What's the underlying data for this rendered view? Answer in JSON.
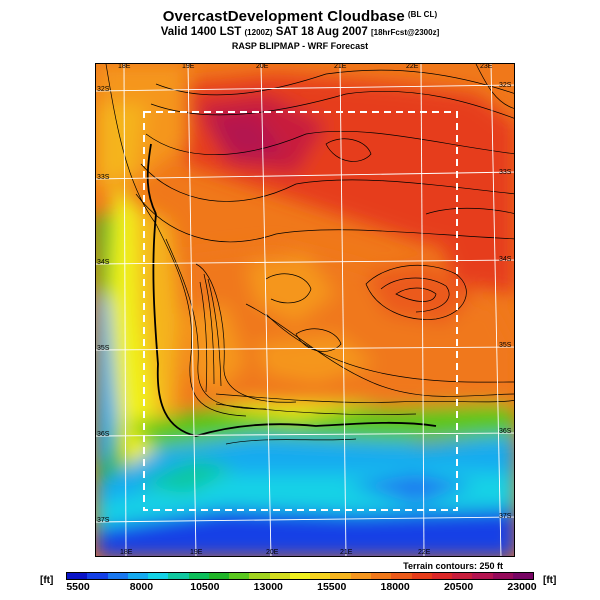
{
  "title": {
    "main": "OvercastDevelopment Cloudbase",
    "main_suffix": "(BL CL)",
    "valid_prefix": "Valid 1400 LST",
    "valid_z": "(1200Z)",
    "valid_date": "SAT 18 Aug 2007",
    "valid_fcst": "[18hrFcst@2300z]",
    "line3": "RASP BLIPMAP - WRF Forecast"
  },
  "map": {
    "top_lon_labels": [
      "18E",
      "19E",
      "20E",
      "21E",
      "22E",
      "23E"
    ],
    "bottom_lon_labels": [
      "18E",
      "19E",
      "20E",
      "21E",
      "22E"
    ],
    "left_lat_labels": [
      "32S",
      "33S",
      "34S",
      "35S",
      "36S",
      "37S"
    ],
    "right_lat_labels": [
      "32S",
      "33S",
      "34S",
      "35S",
      "36S",
      "37S"
    ],
    "terrain_note": "Terrain contours: 250 ft"
  },
  "colorbar": {
    "unit_left": "[ft]",
    "unit_right": "[ft]",
    "tick_labels": [
      "5500",
      "8000",
      "10500",
      "13000",
      "15500",
      "18000",
      "20500",
      "23000"
    ],
    "colors": [
      "#0a14c8",
      "#1440e6",
      "#1a78f0",
      "#16aaf0",
      "#14d2e6",
      "#10c8a0",
      "#0cbe5a",
      "#20b428",
      "#5ac81e",
      "#a0d21e",
      "#d2dc1e",
      "#f0f01e",
      "#f5d21e",
      "#f5b41e",
      "#f5961e",
      "#f0781a",
      "#eb5a1a",
      "#e63c1a",
      "#dc2828",
      "#c81e3c",
      "#b41450",
      "#960a5a",
      "#780564"
    ]
  }
}
